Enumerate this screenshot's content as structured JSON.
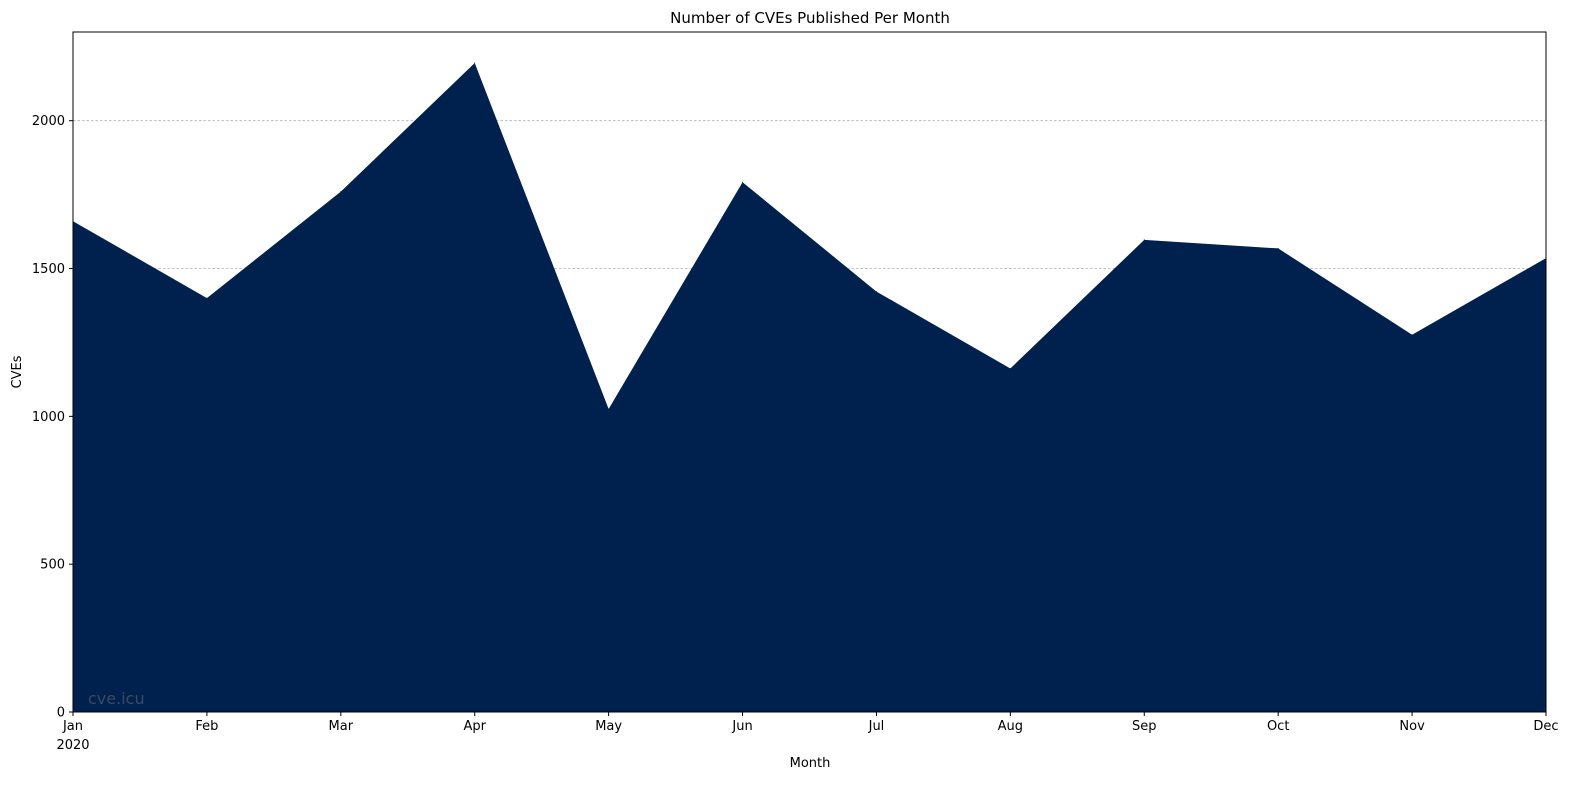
{
  "chart_data": {
    "type": "area",
    "title": "Number of CVEs Published Per Month",
    "xlabel": "Month",
    "ylabel": "CVEs",
    "year_label": "2020",
    "categories": [
      "Jan",
      "Feb",
      "Mar",
      "Apr",
      "May",
      "Jun",
      "Jul",
      "Aug",
      "Sep",
      "Oct",
      "Nov",
      "Dec"
    ],
    "values": [
      1660,
      1400,
      1760,
      2195,
      1025,
      1792,
      1422,
      1162,
      1597,
      1568,
      1276,
      1535
    ],
    "ylim": [
      0,
      2300
    ],
    "yticks": [
      0,
      500,
      1000,
      1500,
      2000
    ],
    "grid": true,
    "fill_color": "#00204e",
    "grid_color": "#b0b0b0",
    "watermark": "cve.icu",
    "watermark_color": "#3b4a63"
  }
}
